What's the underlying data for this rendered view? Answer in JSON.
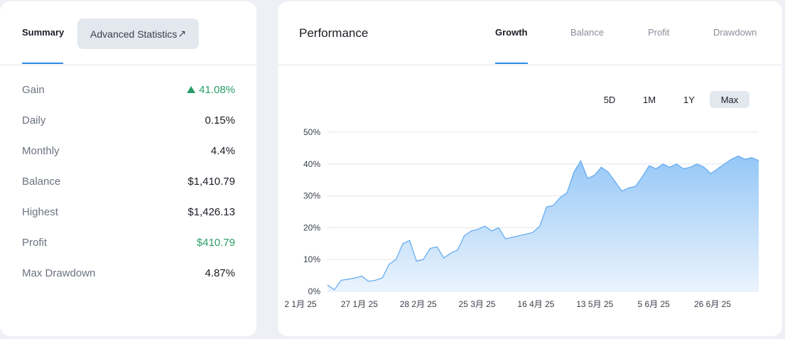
{
  "summary": {
    "tab_summary": "Summary",
    "advanced_label": "Advanced Statistics",
    "advanced_arrow": "↗",
    "stats": [
      {
        "label": "Gain",
        "value": "41.08%",
        "color": "#2a9d68",
        "up": true
      },
      {
        "label": "Daily",
        "value": "0.15%"
      },
      {
        "label": "Monthly",
        "value": "4.4%"
      },
      {
        "label": "Balance",
        "value": "$1,410.79"
      },
      {
        "label": "Highest",
        "value": "$1,426.13"
      },
      {
        "label": "Profit",
        "value": "$410.79",
        "color": "#2a9d68"
      },
      {
        "label": "Max Drawdown",
        "value": "4.87%"
      }
    ]
  },
  "performance": {
    "title": "Performance",
    "tabs": [
      "Growth",
      "Balance",
      "Profit",
      "Drawdown"
    ],
    "active_tab": "Growth",
    "ranges": [
      "5D",
      "1M",
      "1Y",
      "Max"
    ],
    "active_range": "Max"
  },
  "chart_data": {
    "type": "area",
    "series": [
      {
        "values_percent": [
          2,
          0.5,
          3.5,
          3.8,
          4.2,
          4.8,
          3.2,
          3.5,
          4.2,
          8.5,
          10,
          15,
          16,
          9.5,
          10,
          13.5,
          14,
          10.5,
          12,
          13,
          17.5,
          19,
          19.5,
          20.5,
          19,
          20,
          16.5,
          17,
          17.5,
          18,
          18.5,
          20.5,
          26.5,
          27,
          29.5,
          31,
          37.5,
          41,
          35.5,
          36.5,
          39,
          37.5,
          34.5,
          31.5,
          32.5,
          33,
          36,
          39.5,
          38.5,
          40,
          39,
          40,
          38.5,
          39,
          40,
          39,
          37,
          38.5,
          40,
          41.5,
          42.5,
          41.5,
          42,
          41.08
        ]
      }
    ],
    "x_labels": [
      "2 1月 25",
      "27 1月 25",
      "28 2月 25",
      "25 3月 25",
      "16 4月 25",
      "13 5月 25",
      "5 6月 25",
      "26 6月 25"
    ],
    "y_ticks": [
      "0%",
      "10%",
      "20%",
      "30%",
      "40%",
      "50%"
    ],
    "ylim": [
      0,
      50
    ],
    "grid": true,
    "colors": {
      "fill_top": "#8fc4f7",
      "fill_bottom": "#e8f2fc",
      "line": "#5fa8f0"
    }
  }
}
